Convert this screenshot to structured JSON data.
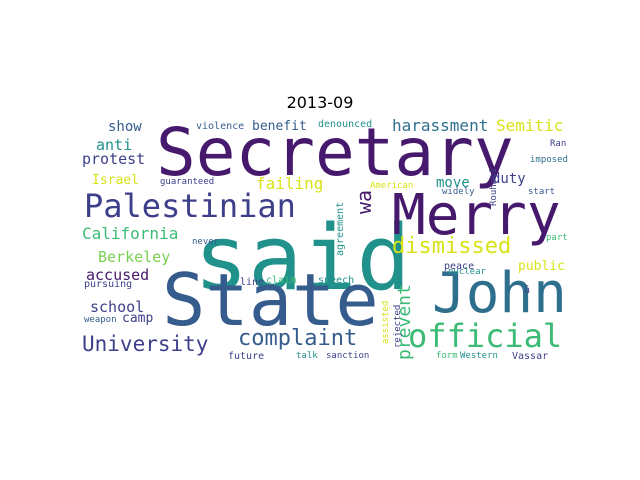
{
  "title": "2013-09",
  "colors": {
    "purple": "#46196d",
    "indigo": "#3d3f8a",
    "blue": "#365c8d",
    "steel": "#2e6f8e",
    "teal": "#21918c",
    "green": "#3bbb75",
    "lightgreen": "#7ad151",
    "yellow": "#d8e219"
  },
  "words": [
    {
      "text": "said",
      "color": "teal"
    },
    {
      "text": "Secretary",
      "color": "purple"
    },
    {
      "text": "State",
      "color": "blue"
    },
    {
      "text": "John",
      "color": "steel"
    },
    {
      "text": "Merry",
      "color": "purple"
    },
    {
      "text": "Palestinian",
      "color": "indigo"
    },
    {
      "text": "official",
      "color": "green"
    },
    {
      "text": "complaint",
      "color": "blue"
    },
    {
      "text": "dismissed",
      "color": "yellow"
    },
    {
      "text": "University",
      "color": "indigo"
    },
    {
      "text": "California",
      "color": "green"
    },
    {
      "text": "failing",
      "color": "yellow"
    },
    {
      "text": "harassment",
      "color": "steel"
    },
    {
      "text": "Semitic",
      "color": "yellow"
    },
    {
      "text": "wa",
      "color": "purple"
    },
    {
      "text": "prevent",
      "color": "green"
    },
    {
      "text": "Berkeley",
      "color": "lightgreen"
    },
    {
      "text": "accused",
      "color": "purple"
    },
    {
      "text": "school",
      "color": "indigo"
    },
    {
      "text": "protest",
      "color": "indigo"
    },
    {
      "text": "anti",
      "color": "teal"
    },
    {
      "text": "show",
      "color": "blue"
    },
    {
      "text": "move",
      "color": "teal"
    },
    {
      "text": "duty",
      "color": "indigo"
    },
    {
      "text": "benefit",
      "color": "blue"
    },
    {
      "text": "Israel",
      "color": "yellow"
    },
    {
      "text": "camp",
      "color": "indigo"
    },
    {
      "text": "public",
      "color": "yellow"
    },
    {
      "text": "violence",
      "color": "blue"
    },
    {
      "text": "denounced",
      "color": "teal"
    },
    {
      "text": "guaranteed",
      "color": "indigo"
    },
    {
      "text": "pursuing",
      "color": "indigo"
    },
    {
      "text": "weapon",
      "color": "blue"
    },
    {
      "text": "never",
      "color": "blue"
    },
    {
      "text": "line",
      "color": "indigo"
    },
    {
      "text": "claim",
      "color": "green"
    },
    {
      "text": "speech",
      "color": "teal"
    },
    {
      "text": "future",
      "color": "indigo"
    },
    {
      "text": "talk",
      "color": "teal"
    },
    {
      "text": "sanction",
      "color": "indigo"
    },
    {
      "text": "agreement",
      "color": "teal"
    },
    {
      "text": "American",
      "color": "yellow"
    },
    {
      "text": "rejected",
      "color": "indigo"
    },
    {
      "text": "assisted",
      "color": "yellow"
    },
    {
      "text": "Rouhani",
      "color": "indigo"
    },
    {
      "text": "widely",
      "color": "blue"
    },
    {
      "text": "start",
      "color": "blue"
    },
    {
      "text": "imposed",
      "color": "steel"
    },
    {
      "text": "Ran",
      "color": "indigo"
    },
    {
      "text": "part",
      "color": "green"
    },
    {
      "text": "peace",
      "color": "indigo"
    },
    {
      "text": "nuclear",
      "color": "teal"
    },
    {
      "text": "â",
      "color": "indigo"
    },
    {
      "text": "form",
      "color": "green"
    },
    {
      "text": "Western",
      "color": "teal"
    },
    {
      "text": "Vassar",
      "color": "indigo"
    }
  ]
}
